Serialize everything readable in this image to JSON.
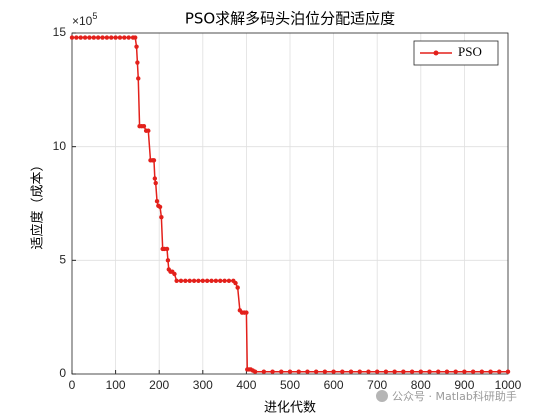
{
  "chart_data": {
    "type": "line",
    "title": "PSO求解多码头泊位分配适应度",
    "x_label": "进化代数",
    "y_label": "适应度（成本）",
    "y_scale_base": "×10",
    "y_scale_power": "5",
    "x": [
      0,
      10,
      20,
      30,
      40,
      50,
      60,
      70,
      80,
      90,
      100,
      110,
      120,
      130,
      140,
      145,
      148,
      150,
      152,
      155,
      160,
      165,
      170,
      175,
      180,
      185,
      188,
      190,
      192,
      195,
      198,
      202,
      205,
      208,
      212,
      218,
      220,
      222,
      226,
      230,
      235,
      240,
      250,
      260,
      270,
      280,
      290,
      300,
      310,
      320,
      330,
      340,
      350,
      360,
      370,
      375,
      380,
      385,
      390,
      395,
      400,
      402,
      406,
      410,
      415,
      420,
      440,
      460,
      480,
      500,
      520,
      540,
      560,
      580,
      600,
      620,
      640,
      660,
      680,
      700,
      720,
      740,
      760,
      780,
      800,
      820,
      840,
      860,
      880,
      900,
      920,
      940,
      960,
      980,
      1000
    ],
    "series": [
      {
        "name": "PSO",
        "color": "#e3201b",
        "values": [
          14.8,
          14.8,
          14.8,
          14.8,
          14.8,
          14.8,
          14.8,
          14.8,
          14.8,
          14.8,
          14.8,
          14.8,
          14.8,
          14.8,
          14.8,
          14.8,
          14.4,
          13.7,
          13.0,
          10.9,
          10.9,
          10.9,
          10.7,
          10.7,
          9.4,
          9.4,
          9.4,
          8.6,
          8.4,
          7.6,
          7.4,
          7.35,
          6.9,
          5.5,
          5.5,
          5.5,
          5.0,
          4.6,
          4.5,
          4.5,
          4.4,
          4.1,
          4.1,
          4.1,
          4.1,
          4.1,
          4.1,
          4.1,
          4.1,
          4.1,
          4.1,
          4.1,
          4.1,
          4.1,
          4.1,
          4.0,
          3.8,
          2.8,
          2.7,
          2.7,
          2.7,
          0.2,
          0.2,
          0.2,
          0.15,
          0.1,
          0.1,
          0.1,
          0.1,
          0.1,
          0.1,
          0.1,
          0.1,
          0.1,
          0.1,
          0.1,
          0.1,
          0.1,
          0.1,
          0.1,
          0.1,
          0.1,
          0.1,
          0.1,
          0.1,
          0.1,
          0.1,
          0.1,
          0.1,
          0.1,
          0.1,
          0.1,
          0.1,
          0.1,
          0.1
        ]
      }
    ],
    "xlim": [
      0,
      1000
    ],
    "xticks": [
      0,
      100,
      200,
      300,
      400,
      500,
      600,
      700,
      800,
      900,
      1000
    ],
    "ylim": [
      0,
      15
    ],
    "yticks": [
      0,
      5,
      10,
      15
    ],
    "grid": true,
    "legend": "northeast"
  },
  "watermark": "公众号 · Matlab科研助手"
}
